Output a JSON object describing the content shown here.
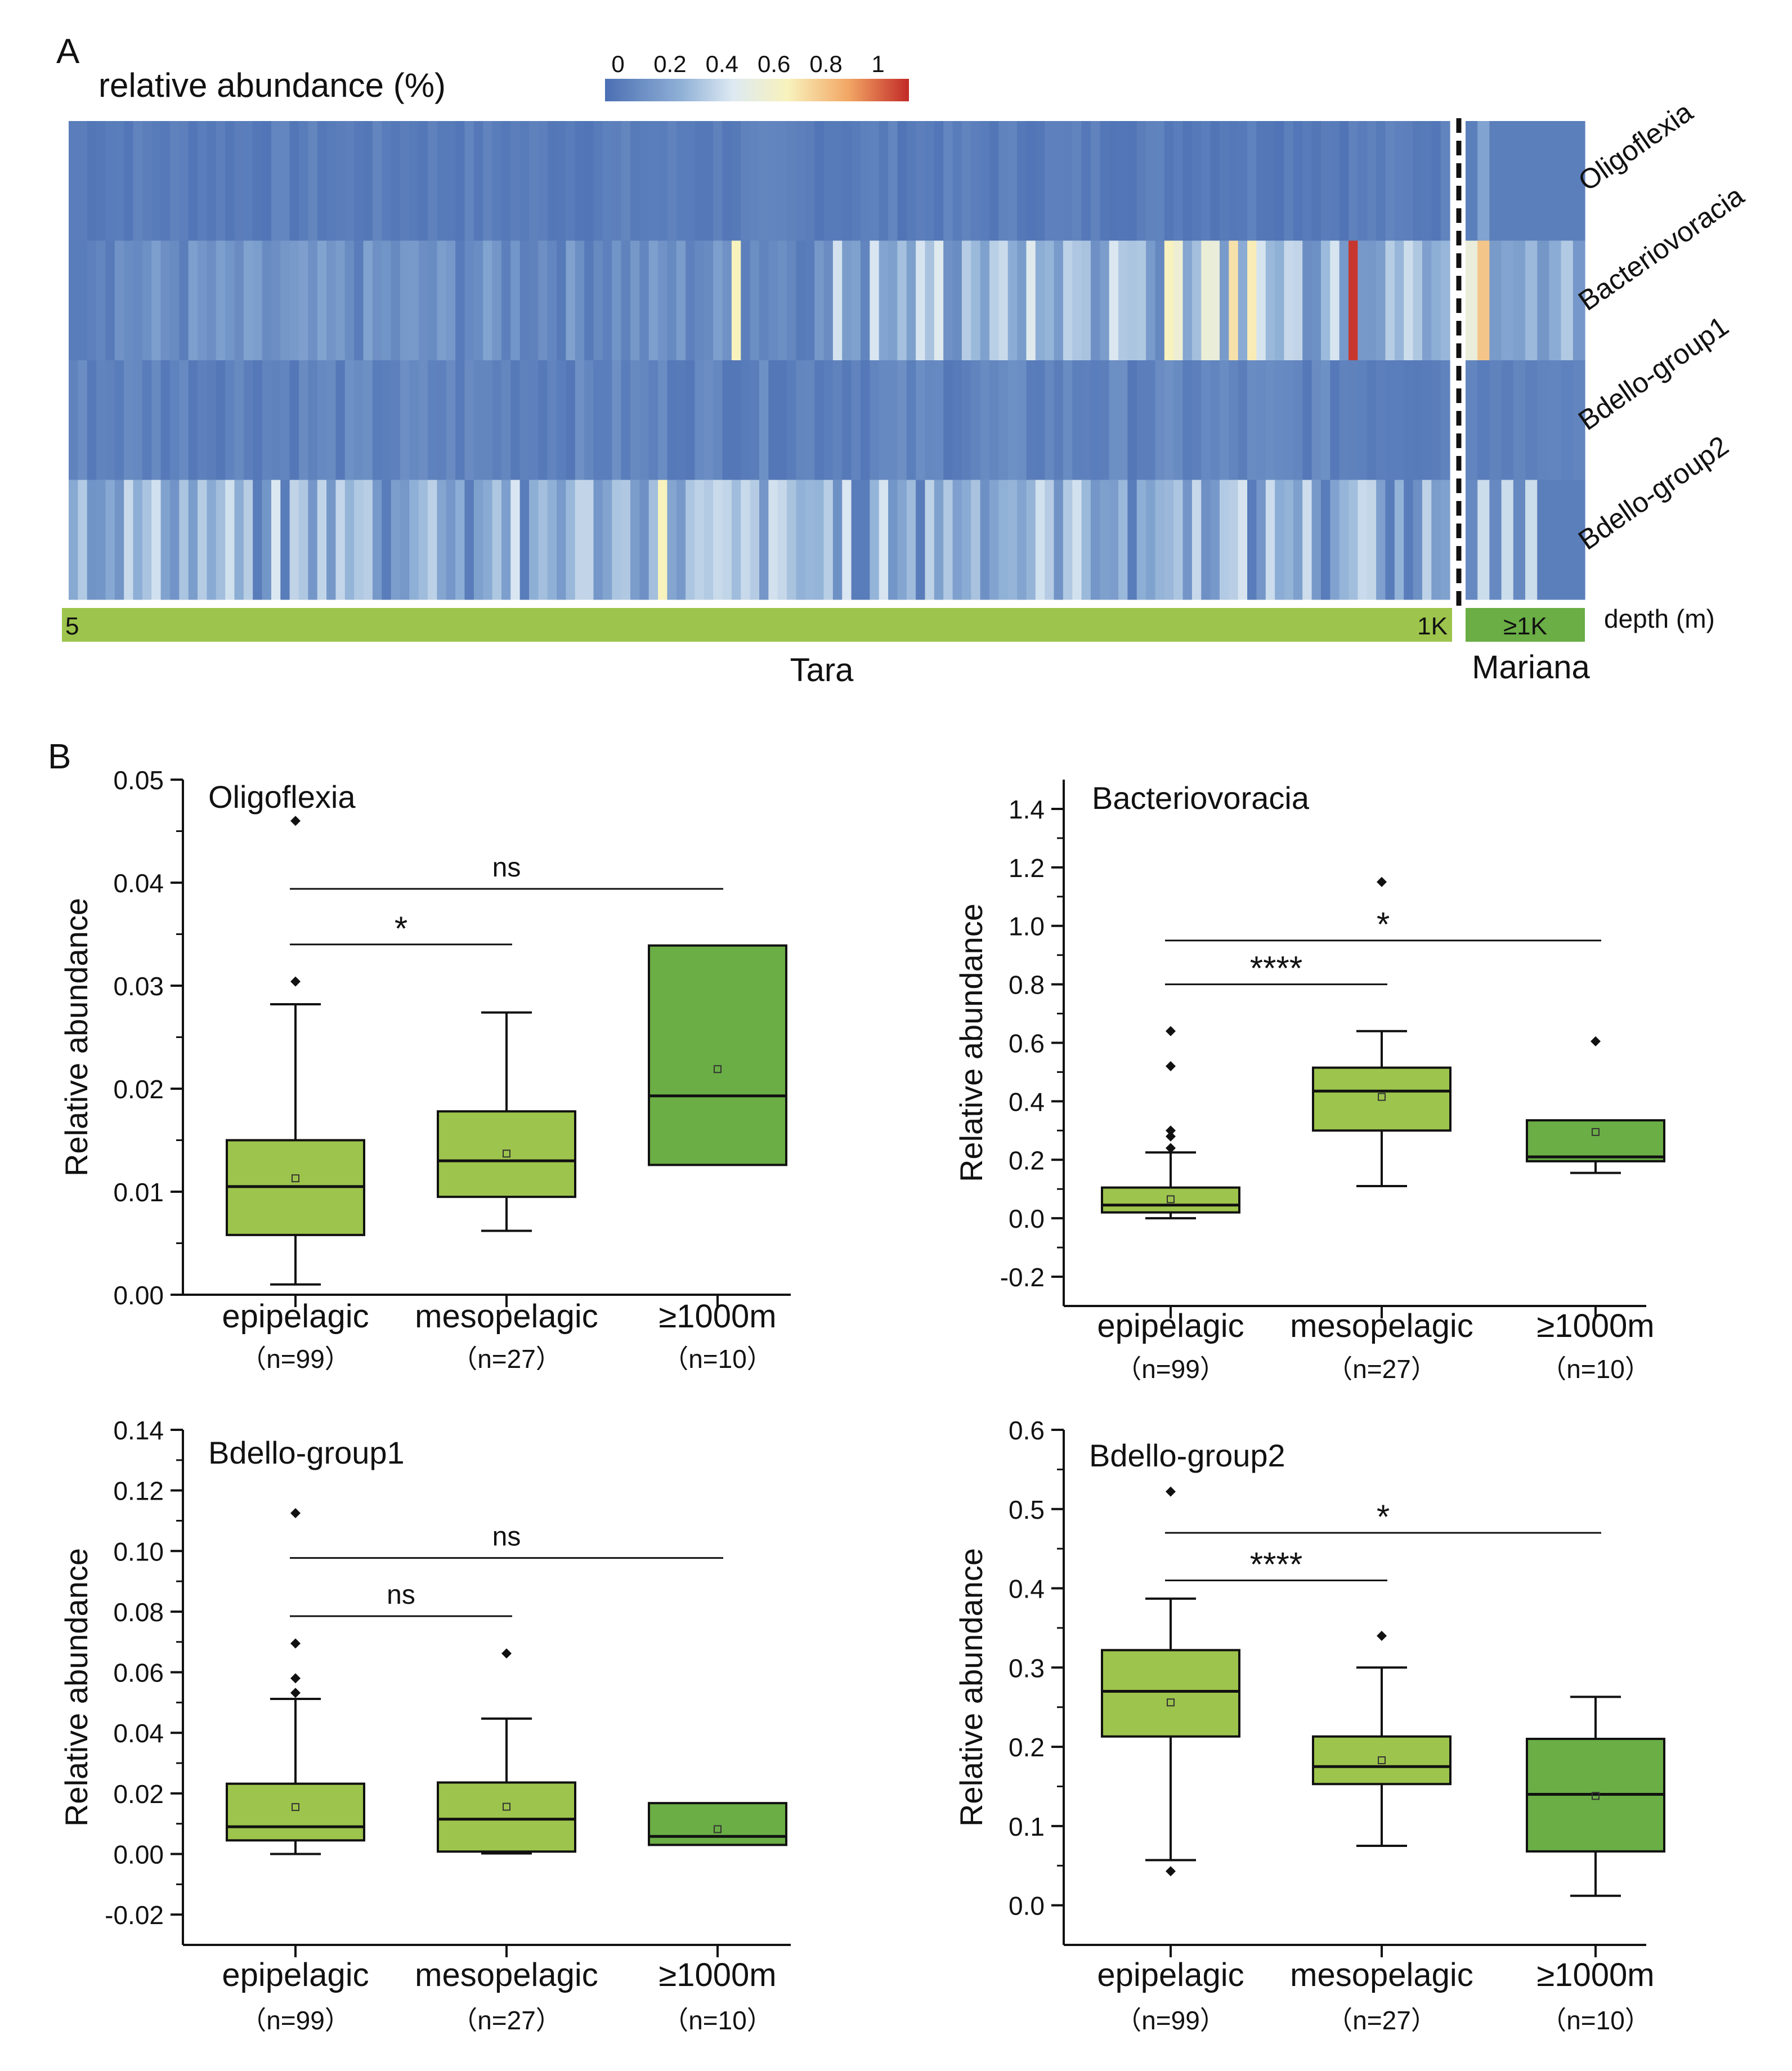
{
  "panel_a": {
    "label": "A",
    "colorbar_title": "relative abundance  (%)",
    "colorbar_ticks": [
      "0",
      "0.2",
      "0.4",
      "0.6",
      "0.8",
      "1"
    ],
    "rows": [
      "Oligoflexia",
      "Bacteriovoracia",
      "Bdello-group1",
      "Bdello-group2"
    ],
    "tara_label": "Tara",
    "mariana_label": "Mariana",
    "depth_start": "5",
    "depth_end": "1K",
    "depth_mariana": "≥1K",
    "depth_axis_label": "depth (m)",
    "colors": {
      "low": "#5b79b5",
      "mid": "#f7f2c0",
      "high": "#c4322a",
      "depth_bar": "#9dc44c",
      "depth_bar_mariana": "#6aae45"
    }
  },
  "panel_b_label": "B",
  "chart_data": [
    {
      "type": "box",
      "title": "Oligoflexia",
      "ylabel": "Relative abundance",
      "ylim": [
        0,
        0.05
      ],
      "yticks": [
        "0.00",
        "0.01",
        "0.02",
        "0.03",
        "0.04",
        "0.05"
      ],
      "categories": [
        "epipelagic",
        "mesopelagic",
        "≥1000m"
      ],
      "n_labels": [
        "（n=99）",
        "（n=27）",
        "（n=10）"
      ],
      "boxes": [
        {
          "whisker_low": 0.001,
          "q1": 0.0058,
          "median": 0.0105,
          "q3": 0.015,
          "whisker_high": 0.0282,
          "mean": 0.0113,
          "outliers": [
            0.0304,
            0.046
          ]
        },
        {
          "whisker_low": 0.0062,
          "q1": 0.0095,
          "median": 0.013,
          "q3": 0.0178,
          "whisker_high": 0.0274,
          "mean": 0.0137,
          "outliers": []
        },
        {
          "whisker_low": 0.0126,
          "q1": 0.0126,
          "median": 0.0193,
          "q3": 0.0339,
          "whisker_high": 0.0339,
          "mean": 0.0219,
          "outliers": []
        }
      ],
      "significance": [
        {
          "from": 0,
          "to": 1,
          "label": "*",
          "y": 0.034
        },
        {
          "from": 0,
          "to": 2,
          "label": "ns",
          "y": 0.0394
        }
      ]
    },
    {
      "type": "box",
      "title": "Bacteriovoracia",
      "ylabel": "Relative abundance",
      "ylim": [
        -0.3,
        1.5
      ],
      "yticks": [
        "-0.2",
        "0.0",
        "0.2",
        "0.4",
        "0.6",
        "0.8",
        "1.0",
        "1.2",
        "1.4"
      ],
      "categories": [
        "epipelagic",
        "mesopelagic",
        "≥1000m"
      ],
      "n_labels": [
        "（n=99）",
        "（n=27）",
        "（n=10）"
      ],
      "boxes": [
        {
          "whisker_low": 0.0,
          "q1": 0.02,
          "median": 0.045,
          "q3": 0.105,
          "whisker_high": 0.225,
          "mean": 0.065,
          "outliers": [
            0.24,
            0.28,
            0.3,
            0.52,
            0.64
          ]
        },
        {
          "whisker_low": 0.11,
          "q1": 0.3,
          "median": 0.435,
          "q3": 0.515,
          "whisker_high": 0.64,
          "mean": 0.415,
          "outliers": [
            1.15
          ]
        },
        {
          "whisker_low": 0.155,
          "q1": 0.195,
          "median": 0.21,
          "q3": 0.335,
          "whisker_high": 0.335,
          "mean": 0.295,
          "outliers": [
            0.605
          ]
        }
      ],
      "significance": [
        {
          "from": 0,
          "to": 1,
          "label": "****",
          "y": 0.8
        },
        {
          "from": 0,
          "to": 2,
          "label": "*",
          "y": 0.95
        }
      ]
    },
    {
      "type": "box",
      "title": "Bdello-group1",
      "ylabel": "Relative abundance",
      "ylim": [
        -0.03,
        0.14
      ],
      "yticks": [
        "-0.02",
        "0.00",
        "0.02",
        "0.04",
        "0.06",
        "0.08",
        "0.10",
        "0.12",
        "0.14"
      ],
      "categories": [
        "epipelagic",
        "mesopelagic",
        "≥1000m"
      ],
      "n_labels": [
        "（n=99）",
        "（n=27）",
        "（n=10）"
      ],
      "boxes": [
        {
          "whisker_low": 0.0,
          "q1": 0.0045,
          "median": 0.009,
          "q3": 0.0232,
          "whisker_high": 0.0512,
          "mean": 0.0155,
          "outliers": [
            0.0532,
            0.058,
            0.0695,
            0.1125
          ]
        },
        {
          "whisker_low": 0.0002,
          "q1": 0.0008,
          "median": 0.0115,
          "q3": 0.0236,
          "whisker_high": 0.0447,
          "mean": 0.0156,
          "outliers": [
            0.0662
          ]
        },
        {
          "whisker_low": 0.003,
          "q1": 0.003,
          "median": 0.0058,
          "q3": 0.0168,
          "whisker_high": 0.0168,
          "mean": 0.0082,
          "outliers": []
        }
      ],
      "significance": [
        {
          "from": 0,
          "to": 1,
          "label": "ns",
          "y": 0.0785
        },
        {
          "from": 0,
          "to": 2,
          "label": "ns",
          "y": 0.0977
        }
      ]
    },
    {
      "type": "box",
      "title": "Bdello-group2",
      "ylabel": "Relative abundance",
      "ylim": [
        -0.05,
        0.6
      ],
      "yticks": [
        "0.0",
        "0.1",
        "0.2",
        "0.3",
        "0.4",
        "0.5",
        "0.6"
      ],
      "categories": [
        "epipelagic",
        "mesopelagic",
        "≥1000m"
      ],
      "n_labels": [
        "（n=99）",
        "（n=27）",
        "（n=10）"
      ],
      "boxes": [
        {
          "whisker_low": 0.057,
          "q1": 0.213,
          "median": 0.27,
          "q3": 0.322,
          "whisker_high": 0.387,
          "mean": 0.256,
          "outliers": [
            0.043,
            0.522
          ]
        },
        {
          "whisker_low": 0.075,
          "q1": 0.153,
          "median": 0.175,
          "q3": 0.213,
          "whisker_high": 0.3,
          "mean": 0.183,
          "outliers": [
            0.34
          ]
        },
        {
          "whisker_low": 0.012,
          "q1": 0.068,
          "median": 0.14,
          "q3": 0.21,
          "whisker_high": 0.263,
          "mean": 0.138,
          "outliers": []
        }
      ],
      "significance": [
        {
          "from": 0,
          "to": 1,
          "label": "****",
          "y": 0.41
        },
        {
          "from": 0,
          "to": 2,
          "label": "*",
          "y": 0.47
        }
      ]
    }
  ]
}
